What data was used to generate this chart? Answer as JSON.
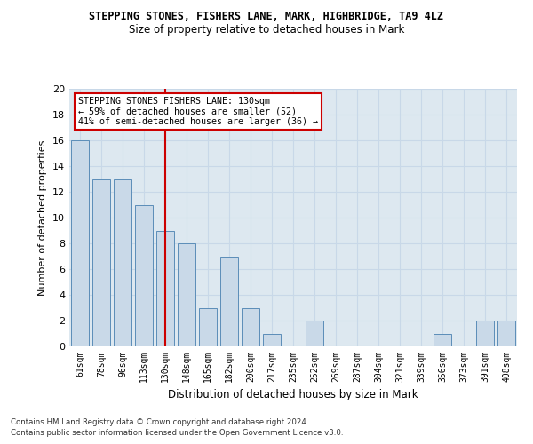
{
  "title1": "STEPPING STONES, FISHERS LANE, MARK, HIGHBRIDGE, TA9 4LZ",
  "title2": "Size of property relative to detached houses in Mark",
  "xlabel": "Distribution of detached houses by size in Mark",
  "ylabel": "Number of detached properties",
  "categories": [
    "61sqm",
    "78sqm",
    "96sqm",
    "113sqm",
    "130sqm",
    "148sqm",
    "165sqm",
    "182sqm",
    "200sqm",
    "217sqm",
    "235sqm",
    "252sqm",
    "269sqm",
    "287sqm",
    "304sqm",
    "321sqm",
    "339sqm",
    "356sqm",
    "373sqm",
    "391sqm",
    "408sqm"
  ],
  "values": [
    16,
    13,
    13,
    11,
    9,
    8,
    3,
    7,
    3,
    1,
    0,
    2,
    0,
    0,
    0,
    0,
    0,
    1,
    0,
    2,
    2
  ],
  "bar_color": "#c9d9e8",
  "bar_edge_color": "#5b8db8",
  "highlight_index": 4,
  "highlight_line_color": "#cc0000",
  "ylim": [
    0,
    20
  ],
  "yticks": [
    0,
    2,
    4,
    6,
    8,
    10,
    12,
    14,
    16,
    18,
    20
  ],
  "grid_color": "#c8d8e8",
  "annotation_text": "STEPPING STONES FISHERS LANE: 130sqm\n← 59% of detached houses are smaller (52)\n41% of semi-detached houses are larger (36) →",
  "annotation_box_color": "#ffffff",
  "annotation_box_edge": "#cc0000",
  "footer1": "Contains HM Land Registry data © Crown copyright and database right 2024.",
  "footer2": "Contains public sector information licensed under the Open Government Licence v3.0.",
  "background_color": "#dde8f0"
}
